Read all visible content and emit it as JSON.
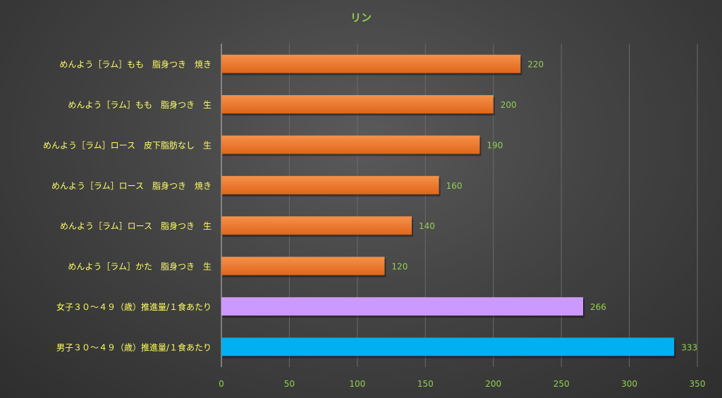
{
  "chart_data": {
    "type": "bar",
    "orientation": "horizontal",
    "title": "リン",
    "categories": [
      "めんよう［ラム］もも　脂身つき　焼き",
      "めんよう［ラム］もも　脂身つき　生",
      "めんよう［ラム］ロース　皮下脂肪なし　生",
      "めんよう［ラム］ロース　脂身つき　焼き",
      "めんよう［ラム］ロース　脂身つき　生",
      "めんよう［ラム］かた　脂身つき　生",
      "女子３０～４９（歳）推進量/１食あたり",
      "男子３０～４９（歳）推進量/１食あたり"
    ],
    "values": [
      220,
      200,
      190,
      160,
      140,
      120,
      266,
      333
    ],
    "value_labels": [
      "220",
      "200",
      "190",
      "160",
      "140",
      "120",
      "266",
      "333"
    ],
    "bar_colors": [
      "#f07a28",
      "#f07a28",
      "#f07a28",
      "#f07a28",
      "#f07a28",
      "#f07a28",
      "#cc99ff",
      "#00b0f0"
    ],
    "xlim": [
      0,
      350
    ],
    "xticks": [
      0,
      50,
      100,
      150,
      200,
      250,
      300,
      350
    ],
    "xtick_labels": [
      "0",
      "50",
      "100",
      "150",
      "200",
      "250",
      "300",
      "350"
    ],
    "xlabel": "",
    "ylabel": "",
    "grid": "vertical",
    "legend": "none",
    "colors": {
      "title": "#92d050",
      "category_label": "#ffff66",
      "value_label": "#92d050",
      "tick_label": "#92d050",
      "gridline": "#6a6a6a",
      "axis_line": "#bfbfbf"
    }
  }
}
